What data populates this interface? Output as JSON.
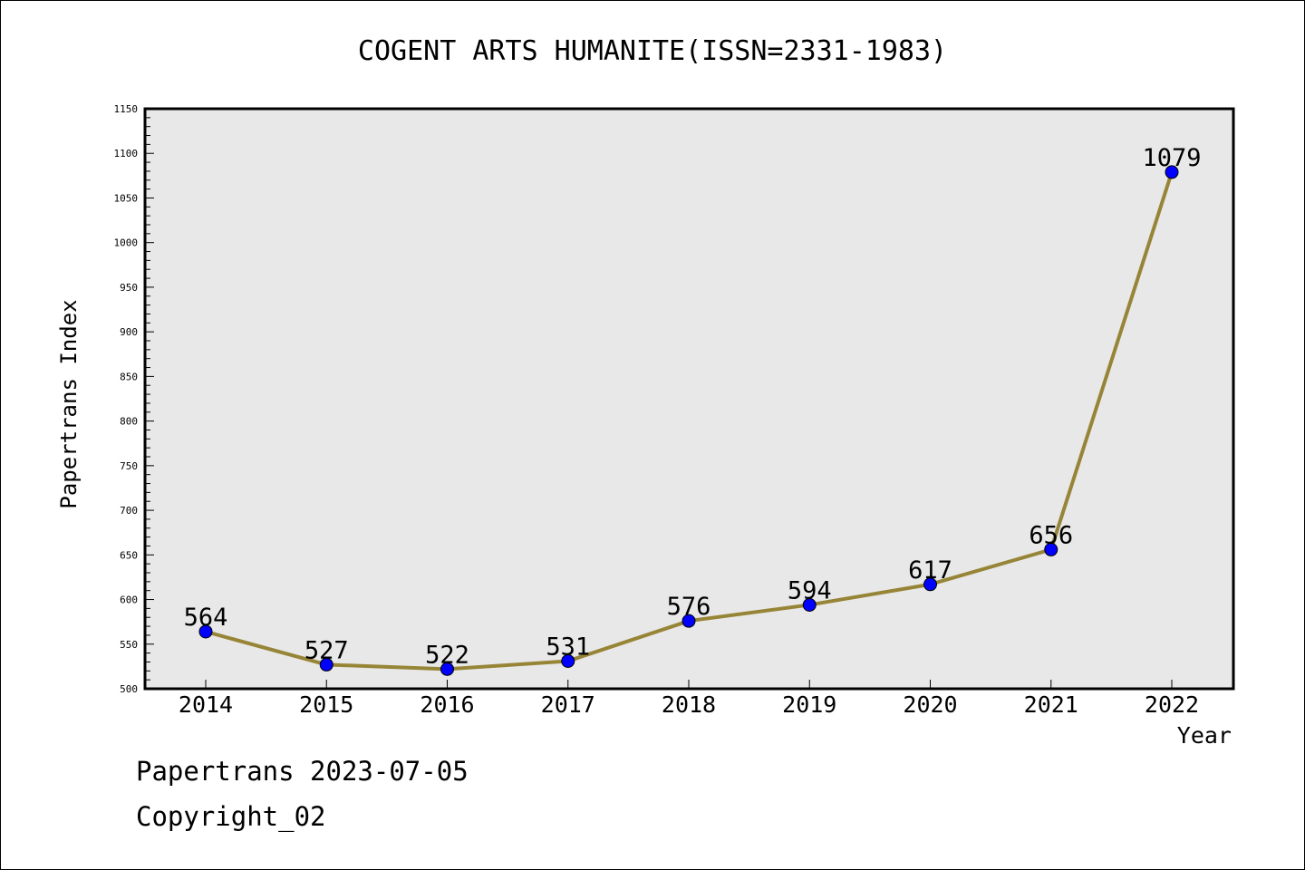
{
  "chart_data": {
    "type": "line",
    "title": "COGENT ARTS HUMANITE(ISSN=2331-1983)",
    "xlabel": "Year",
    "ylabel": "Papertrans Index",
    "categories": [
      "2014",
      "2015",
      "2016",
      "2017",
      "2018",
      "2019",
      "2020",
      "2021",
      "2022"
    ],
    "series": [
      {
        "values": [
          564,
          527,
          522,
          531,
          576,
          594,
          617,
          656,
          1079
        ],
        "data_labels": [
          "564",
          "527",
          "522",
          "531",
          "576",
          "594",
          "617",
          "656",
          "1079"
        ]
      }
    ],
    "ylim": [
      500,
      1150
    ],
    "yticks": [
      500,
      550,
      600,
      650,
      700,
      750,
      800,
      850,
      900,
      950,
      1000,
      1050,
      1100,
      1150
    ],
    "ytick_labels": [
      "500",
      "550",
      "600",
      "650",
      "700",
      "750",
      "800",
      "850",
      "900",
      "950",
      "1000",
      "1050",
      "1100",
      "1150"
    ],
    "grid": false,
    "colors": {
      "line": "#978537",
      "marker": "#0000ff",
      "plot_background": "#e8e8e8"
    }
  },
  "footer": {
    "line1": "Papertrans 2023-07-05",
    "line2": "Copyright_02"
  }
}
